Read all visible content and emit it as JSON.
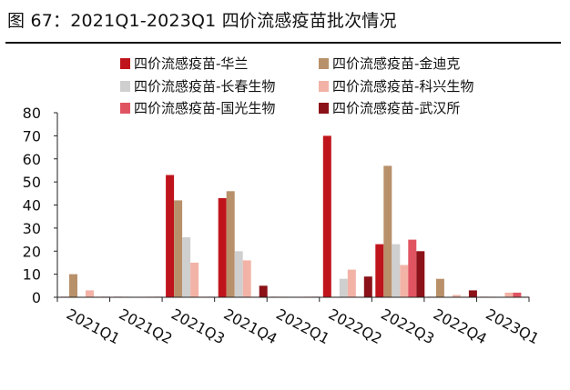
{
  "figure": {
    "title": "图 67：2021Q1-2023Q1 四价流感疫苗批次情况"
  },
  "chart_data": {
    "type": "bar",
    "title": "图 67：2021Q1-2023Q1 四价流感疫苗批次情况",
    "xlabel": "",
    "ylabel": "",
    "categories": [
      "2021Q1",
      "2021Q2",
      "2021Q3",
      "2021Q4",
      "2022Q1",
      "2022Q2",
      "2022Q3",
      "2022Q4",
      "2023Q1"
    ],
    "ylim": [
      0,
      80
    ],
    "yticks": [
      0,
      10,
      20,
      30,
      40,
      50,
      60,
      70,
      80
    ],
    "grid": false,
    "legend_position": "top",
    "series": [
      {
        "name": "四价流感疫苗-华兰",
        "color": "#c0141c",
        "values": [
          0,
          0,
          53,
          43,
          0,
          70,
          23,
          0,
          0
        ]
      },
      {
        "name": "四价流感疫苗-金迪克",
        "color": "#b8906a",
        "values": [
          10,
          0,
          42,
          46,
          0,
          0,
          57,
          8,
          0
        ]
      },
      {
        "name": "四价流感疫苗-长春生物",
        "color": "#cfcfcf",
        "values": [
          0,
          0,
          26,
          20,
          0,
          8,
          23,
          0,
          0
        ]
      },
      {
        "name": "四价流感疫苗-科兴生物",
        "color": "#f2b3a6",
        "values": [
          3,
          0,
          15,
          16,
          0,
          12,
          14,
          1,
          2
        ]
      },
      {
        "name": "四价流感疫苗-国光生物",
        "color": "#e05462",
        "values": [
          0,
          0,
          0,
          0,
          0,
          0,
          25,
          0,
          2
        ]
      },
      {
        "name": "四价流感疫苗-武汉所",
        "color": "#8b1218",
        "values": [
          0,
          0,
          0,
          5,
          0,
          9,
          20,
          3,
          0
        ]
      }
    ]
  }
}
